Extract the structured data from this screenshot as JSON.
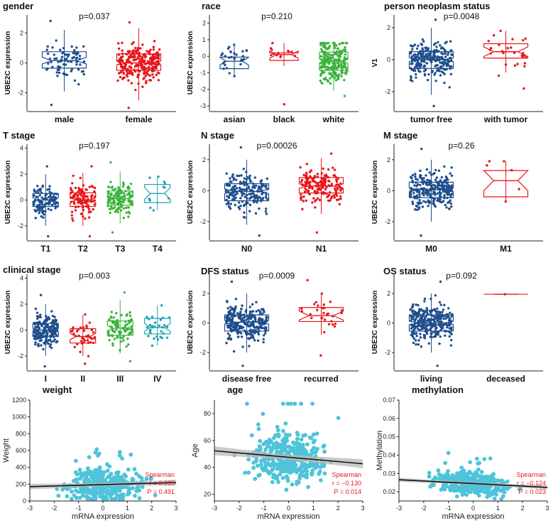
{
  "colors": {
    "blue": "#1f4e8c",
    "red": "#e8161b",
    "green": "#3cb33c",
    "teal": "#1aa1b1",
    "scatter": "#4fc3d9",
    "fitline": "#111111",
    "band": "#b8b8b8",
    "stat": "#e8161b"
  },
  "chart_data": [
    {
      "type": "box",
      "title": "gender",
      "ylabel": "UBE2C expression",
      "pvalue": "p=0.037",
      "ylim": [
        -3.2,
        3.2
      ],
      "yticks": [
        -2,
        0,
        2
      ],
      "groups": [
        {
          "label": "male",
          "color": "blue",
          "q1": -0.35,
          "median": 0.15,
          "q3": 0.75,
          "lo": -1.9,
          "hi": 2.2,
          "notch": 0.22,
          "n": 80,
          "min": -2.8,
          "max": 2.8
        },
        {
          "label": "female",
          "color": "red",
          "q1": -0.5,
          "median": 0.0,
          "q3": 0.6,
          "lo": -2.5,
          "hi": 2.3,
          "notch": 0.12,
          "n": 260,
          "min": -3.0,
          "max": 2.7
        }
      ]
    },
    {
      "type": "box",
      "title": "race",
      "ylabel": "UBE2C expression",
      "pvalue": "p=0.210",
      "ylim": [
        -3.3,
        2.5
      ],
      "yticks": [
        -3,
        -2,
        -1,
        0,
        1,
        2
      ],
      "groups": [
        {
          "label": "asian",
          "color": "blue",
          "q1": -0.75,
          "median": -0.3,
          "q3": -0.05,
          "lo": -1.2,
          "hi": 0.7,
          "notch": 0.22,
          "n": 30,
          "min": -1.2,
          "max": 0.7
        },
        {
          "label": "black",
          "color": "red",
          "q1": -0.25,
          "median": 0.1,
          "q3": 0.2,
          "lo": -0.6,
          "hi": 0.8,
          "notch": 0.22,
          "n": 14,
          "min": -2.9,
          "max": 0.8
        },
        {
          "label": "white",
          "color": "green",
          "q1": -0.85,
          "median": -0.3,
          "q3": 0.25,
          "lo": -2.1,
          "hi": 0.8,
          "notch": 0.12,
          "n": 240,
          "min": -2.4,
          "max": 0.8
        }
      ]
    },
    {
      "type": "box",
      "title": "person neoplasm status",
      "ylabel": "V1",
      "pvalue": "p=0.0048",
      "ylim": [
        -3.2,
        2.8
      ],
      "yticks": [
        -2,
        0,
        2
      ],
      "groups": [
        {
          "label": "tumor free",
          "color": "blue",
          "q1": -0.55,
          "median": 0.0,
          "q3": 0.5,
          "lo": -2.2,
          "hi": 2.0,
          "notch": 0.12,
          "n": 250,
          "min": -2.9,
          "max": 2.5
        },
        {
          "label": "with tumor",
          "color": "red",
          "q1": 0.1,
          "median": 0.5,
          "q3": 1.0,
          "lo": -0.8,
          "hi": 1.8,
          "notch": 0.3,
          "n": 28,
          "min": -1.8,
          "max": 1.8
        }
      ]
    },
    {
      "type": "box",
      "title": "T stage",
      "ylabel": "UBE2C expression",
      "pvalue": "p=0.197",
      "ylim": [
        -3.1,
        4.3
      ],
      "yticks": [
        -2,
        0,
        2,
        4
      ],
      "groups": [
        {
          "label": "T1",
          "color": "blue",
          "q1": -0.5,
          "median": 0.0,
          "q3": 0.5,
          "lo": -2.0,
          "hi": 2.0,
          "notch": 0.18,
          "n": 110,
          "min": -2.8,
          "max": 2.6
        },
        {
          "label": "T2",
          "color": "red",
          "q1": -0.5,
          "median": 0.0,
          "q3": 0.55,
          "lo": -2.0,
          "hi": 2.1,
          "notch": 0.18,
          "n": 120,
          "min": -2.8,
          "max": 2.6
        },
        {
          "label": "T3",
          "color": "green",
          "q1": -0.4,
          "median": 0.1,
          "q3": 0.7,
          "lo": -1.8,
          "hi": 2.2,
          "notch": 0.18,
          "n": 130,
          "min": -2.5,
          "max": 2.9
        },
        {
          "label": "T4",
          "color": "teal",
          "q1": -0.2,
          "median": 0.5,
          "q3": 1.2,
          "lo": -0.8,
          "hi": 1.8,
          "notch": 0.45,
          "n": 12,
          "min": -0.8,
          "max": 1.8
        }
      ]
    },
    {
      "type": "box",
      "title": "N stage",
      "ylabel": "UBE2C expression",
      "pvalue": "p=0.00026",
      "ylim": [
        -3.2,
        3.0
      ],
      "yticks": [
        -2,
        0,
        2
      ],
      "groups": [
        {
          "label": "N0",
          "color": "blue",
          "q1": -0.65,
          "median": -0.05,
          "q3": 0.45,
          "lo": -2.2,
          "hi": 2.0,
          "notch": 0.14,
          "n": 190,
          "min": -2.9,
          "max": 2.8
        },
        {
          "label": "N1",
          "color": "red",
          "q1": -0.15,
          "median": 0.3,
          "q3": 0.85,
          "lo": -1.5,
          "hi": 2.1,
          "notch": 0.14,
          "n": 170,
          "min": -2.7,
          "max": 2.4
        }
      ]
    },
    {
      "type": "box",
      "title": "M stage",
      "ylabel": "UBE2C expression",
      "pvalue": "p=0.26",
      "ylim": [
        -3.2,
        3.0
      ],
      "yticks": [
        -2,
        0,
        2
      ],
      "groups": [
        {
          "label": "M0",
          "color": "blue",
          "q1": -0.45,
          "median": 0.05,
          "q3": 0.55,
          "lo": -2.0,
          "hi": 2.0,
          "notch": 0.12,
          "n": 260,
          "min": -2.9,
          "max": 2.7
        },
        {
          "label": "M1",
          "color": "red",
          "q1": -0.4,
          "median": 0.65,
          "q3": 1.3,
          "lo": -0.7,
          "hi": 1.9,
          "notch": 0.65,
          "n": 6,
          "min": -0.7,
          "max": 1.9
        }
      ]
    },
    {
      "type": "box",
      "title": "clinical stage",
      "ylabel": "UBE2C expression",
      "pvalue": "p=0.003",
      "ylim": [
        -3.1,
        4.3
      ],
      "yticks": [
        -2,
        0,
        2,
        4
      ],
      "groups": [
        {
          "label": "I",
          "color": "blue",
          "q1": -0.5,
          "median": 0.0,
          "q3": 0.5,
          "lo": -2.0,
          "hi": 2.0,
          "notch": 0.14,
          "n": 210,
          "min": -2.8,
          "max": 2.7
        },
        {
          "label": "II",
          "color": "red",
          "q1": -1.0,
          "median": -0.5,
          "q3": 0.1,
          "lo": -2.0,
          "hi": 1.2,
          "notch": 0.25,
          "n": 40,
          "min": -2.6,
          "max": 1.2
        },
        {
          "label": "III",
          "color": "green",
          "q1": -0.4,
          "median": 0.15,
          "q3": 0.7,
          "lo": -1.8,
          "hi": 2.3,
          "notch": 0.2,
          "n": 90,
          "min": -2.4,
          "max": 2.9
        },
        {
          "label": "IV",
          "color": "teal",
          "q1": -0.3,
          "median": 0.2,
          "q3": 0.9,
          "lo": -1.2,
          "hi": 1.9,
          "notch": 0.3,
          "n": 30,
          "min": -1.2,
          "max": 1.9
        }
      ]
    },
    {
      "type": "box",
      "title": "DFS status",
      "ylabel": "UBE2C expression",
      "pvalue": "p=0.0009",
      "ylim": [
        -3.2,
        3.3
      ],
      "yticks": [
        -2,
        0,
        2
      ],
      "groups": [
        {
          "label": "disease free",
          "color": "blue",
          "q1": -0.55,
          "median": 0.05,
          "q3": 0.55,
          "lo": -2.0,
          "hi": 2.0,
          "notch": 0.12,
          "n": 280,
          "min": -2.9,
          "max": 2.8
        },
        {
          "label": "recurred",
          "color": "red",
          "q1": 0.1,
          "median": 0.5,
          "q3": 1.05,
          "lo": -0.8,
          "hi": 2.0,
          "notch": 0.3,
          "n": 30,
          "min": -2.2,
          "max": 2.9
        }
      ]
    },
    {
      "type": "box",
      "title": "OS status",
      "ylabel": "UBE2C expression",
      "pvalue": "p=0.092",
      "ylim": [
        -3.2,
        3.3
      ],
      "yticks": [
        -2,
        0,
        2
      ],
      "groups": [
        {
          "label": "living",
          "color": "blue",
          "q1": -0.55,
          "median": 0.0,
          "q3": 0.55,
          "lo": -2.0,
          "hi": 2.0,
          "notch": 0.12,
          "n": 300,
          "min": -2.9,
          "max": 2.8
        },
        {
          "label": "deceased",
          "color": "red",
          "q1": 1.95,
          "median": 1.95,
          "q3": 1.95,
          "lo": 1.95,
          "hi": 1.95,
          "notch": 0.0,
          "n": 1,
          "min": 1.95,
          "max": 1.95
        }
      ]
    },
    {
      "type": "scatter",
      "title": "weight",
      "xlabel": "mRNA expression",
      "ylabel": "Weight",
      "xlim": [
        -3,
        3
      ],
      "ylim": [
        0,
        1200
      ],
      "xticks": [
        -3,
        -2,
        -1,
        0,
        1,
        2,
        3
      ],
      "yticks": [
        0,
        200,
        400,
        600,
        800,
        1000,
        1200
      ],
      "fit": {
        "intercept": 195,
        "slope": 8,
        "band": 18
      },
      "ycenter": 200,
      "yspread": 120,
      "n": 380,
      "stats": {
        "method": "Spearman",
        "r": "r = 0.035",
        "p": "P = 0.491"
      }
    },
    {
      "type": "scatter",
      "title": "age",
      "xlabel": "mRNA expression",
      "ylabel": "Age",
      "xlim": [
        -3,
        3
      ],
      "ylim": [
        15,
        90
      ],
      "xticks": [
        -3,
        -2,
        -1,
        0,
        1,
        2,
        3
      ],
      "yticks": [
        20,
        40,
        60,
        80
      ],
      "fit": {
        "intercept": 47.5,
        "slope": -1.6,
        "band": 1.8
      },
      "ycenter": 48,
      "yspread": 13,
      "n": 380,
      "stats": {
        "method": "Spearman",
        "r": "r = −0.130",
        "p": "P = 0.014"
      }
    },
    {
      "type": "scatter",
      "title": "methylation",
      "xlabel": "mRNA expression",
      "ylabel": "Methylation",
      "xlim": [
        -3,
        3
      ],
      "ylim": [
        0.015,
        0.07
      ],
      "xticks": [
        -3,
        -2,
        -1,
        0,
        1,
        2,
        3
      ],
      "yticks": [
        0.02,
        0.03,
        0.04,
        0.05,
        0.06,
        0.07
      ],
      "fit": {
        "intercept": 0.0245,
        "slope": -0.0007,
        "band": 0.0006
      },
      "ycenter": 0.024,
      "yspread": 0.004,
      "n": 360,
      "stats": {
        "method": "Spearman",
        "r": "r = −0.124",
        "p": "P = 0.023"
      }
    }
  ]
}
